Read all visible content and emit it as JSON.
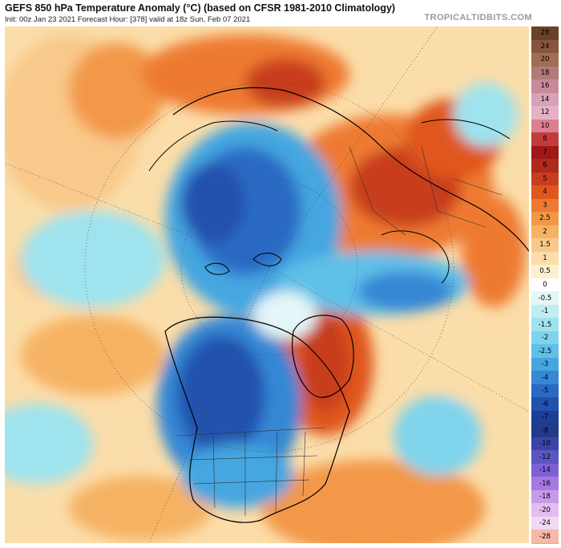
{
  "header": {
    "title": "GEFS 850 hPa Temperature Anomaly (°C) (based on CFSR 1981-2010 Climatology)",
    "subtitle": "Init: 00z Jan 23 2021   Forecast Hour: [378]   valid at 18z Sun, Feb 07 2021",
    "brand": "TROPICALTIDBITS.COM"
  },
  "colorbar": {
    "levels": [
      {
        "label": "28",
        "color": "#6b4128"
      },
      {
        "label": "24",
        "color": "#87563a"
      },
      {
        "label": "20",
        "color": "#a36d55"
      },
      {
        "label": "18",
        "color": "#b27a79"
      },
      {
        "label": "16",
        "color": "#c88a9a"
      },
      {
        "label": "14",
        "color": "#d8a1b6"
      },
      {
        "label": "12",
        "color": "#e3b2c6"
      },
      {
        "label": "10",
        "color": "#dc7f8e"
      },
      {
        "label": "8",
        "color": "#c23c3e"
      },
      {
        "label": "7",
        "color": "#9e1818"
      },
      {
        "label": "6",
        "color": "#b02a1b"
      },
      {
        "label": "5",
        "color": "#c83d1e"
      },
      {
        "label": "4",
        "color": "#e0561f"
      },
      {
        "label": "3",
        "color": "#ee7a32"
      },
      {
        "label": "2.5",
        "color": "#f39848"
      },
      {
        "label": "2",
        "color": "#f6b264"
      },
      {
        "label": "1.5",
        "color": "#f8c98a"
      },
      {
        "label": "1",
        "color": "#fbdda9"
      },
      {
        "label": "0.5",
        "color": "#fdf0cf"
      },
      {
        "label": "0",
        "color": "#ffffff"
      },
      {
        "label": "-0.5",
        "color": "#e3f6f8"
      },
      {
        "label": "-1",
        "color": "#c0edf2"
      },
      {
        "label": "-1.5",
        "color": "#9fe3ee"
      },
      {
        "label": "-2",
        "color": "#7fd4ec"
      },
      {
        "label": "-2.5",
        "color": "#5fc0e8"
      },
      {
        "label": "-3",
        "color": "#45a6e0"
      },
      {
        "label": "-4",
        "color": "#3687d4"
      },
      {
        "label": "-5",
        "color": "#2a6ac4"
      },
      {
        "label": "-6",
        "color": "#2251ae"
      },
      {
        "label": "-7",
        "color": "#1b3e96"
      },
      {
        "label": "-8",
        "color": "#213a8a"
      },
      {
        "label": "-10",
        "color": "#3a44a6"
      },
      {
        "label": "-12",
        "color": "#5a55c2"
      },
      {
        "label": "-14",
        "color": "#7d61d4"
      },
      {
        "label": "-16",
        "color": "#a47ae0"
      },
      {
        "label": "-18",
        "color": "#c79ae8"
      },
      {
        "label": "-20",
        "color": "#e2bdf0"
      },
      {
        "label": "-24",
        "color": "#f1d8f4"
      },
      {
        "label": "-28",
        "color": "#f6b8a8"
      }
    ]
  }
}
